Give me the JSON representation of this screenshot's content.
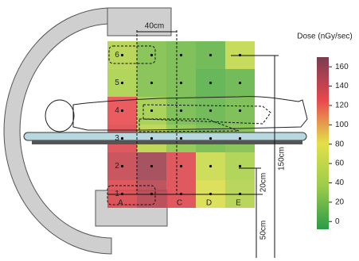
{
  "chart_data": {
    "type": "heatmap",
    "x_categories": [
      "A",
      null,
      "C",
      "D",
      "E"
    ],
    "y_categories": [
      "1",
      "2",
      "3",
      "4",
      "5",
      "6"
    ],
    "values": [
      [
        130,
        145,
        130,
        75,
        50
      ],
      [
        140,
        155,
        130,
        65,
        45
      ],
      [
        130,
        55,
        30,
        20,
        25
      ],
      [
        125,
        40,
        20,
        15,
        20
      ],
      [
        45,
        25,
        20,
        10,
        15
      ],
      [
        50,
        25,
        20,
        15,
        60
      ]
    ],
    "colorbar": {
      "title": "Dose (nGy/sec)",
      "lim": [
        -8,
        170
      ],
      "ticks": [
        0,
        20,
        40,
        60,
        80,
        100,
        120,
        140,
        160
      ],
      "colors": [
        "#2a9b48",
        "#9ccc4a",
        "#e3e04a",
        "#e8484e",
        "#7a3c50"
      ]
    },
    "annotations": {
      "width": "40cm",
      "height": "150cm",
      "row_gap": "20cm",
      "floor_gap": "50cm"
    }
  }
}
